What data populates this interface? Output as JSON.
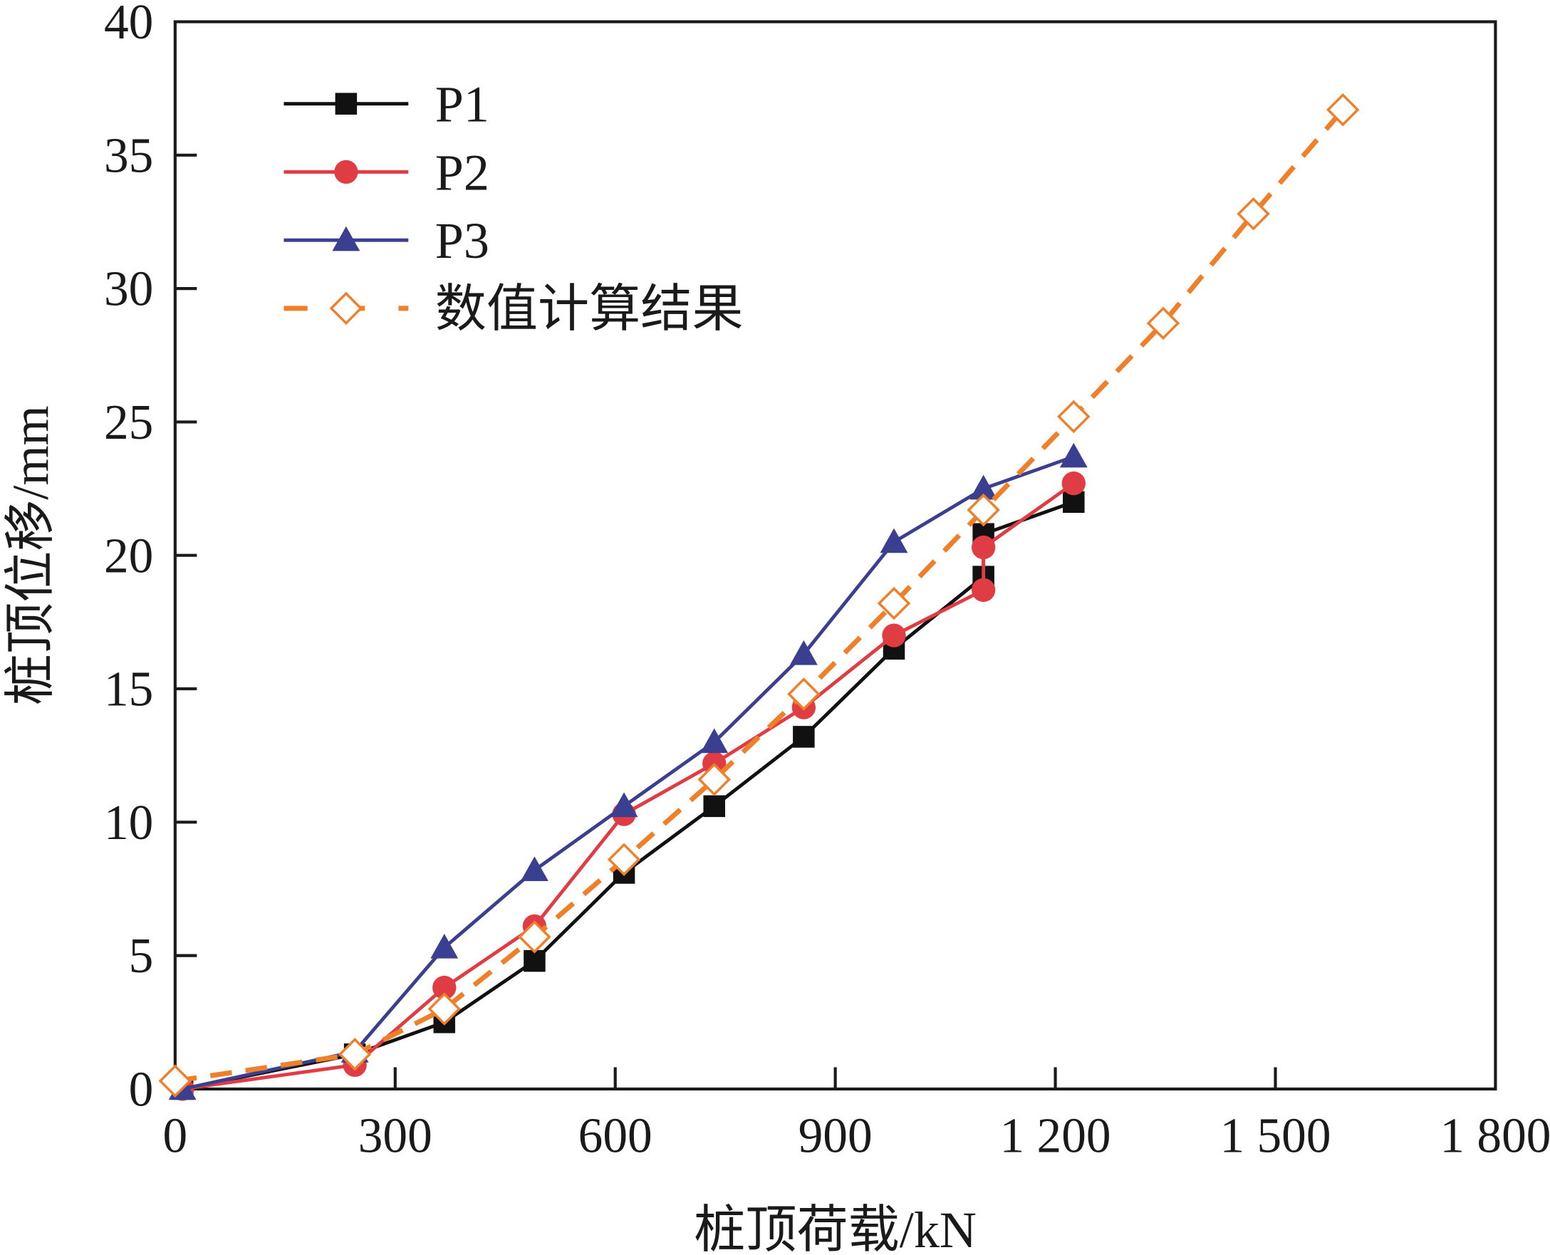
{
  "chart_data": {
    "type": "line",
    "title": "",
    "xlabel": "桩顶荷载/kN",
    "ylabel": "桩顶位移/mm",
    "xlim": [
      0,
      1800
    ],
    "ylim": [
      0,
      40
    ],
    "xticks": [
      0,
      300,
      600,
      900,
      1200,
      1500,
      1800
    ],
    "xtick_labels": [
      "0",
      "300",
      "600",
      "900",
      "1 200",
      "1 500",
      "1 800"
    ],
    "yticks": [
      0,
      5,
      10,
      15,
      20,
      25,
      30,
      35,
      40
    ],
    "ytick_labels": [
      "0",
      "5",
      "10",
      "15",
      "20",
      "25",
      "30",
      "35",
      "40"
    ],
    "grid": false,
    "legend_position": "top-left",
    "series": [
      {
        "name": "P1",
        "color": "#111111",
        "marker": "square",
        "dash": false,
        "x": [
          10,
          245,
          367,
          490,
          612,
          735,
          857,
          980,
          1102,
          1102,
          1225
        ],
        "y": [
          0,
          1.3,
          2.5,
          4.8,
          8.1,
          10.6,
          13.2,
          16.5,
          19.2,
          20.8,
          22.0
        ]
      },
      {
        "name": "P2",
        "color": "#e03c44",
        "marker": "circle",
        "dash": false,
        "x": [
          10,
          245,
          367,
          490,
          612,
          735,
          857,
          980,
          1102,
          1102,
          1225
        ],
        "y": [
          0,
          0.9,
          3.8,
          6.1,
          10.3,
          12.2,
          14.3,
          17.0,
          18.7,
          20.3,
          22.7
        ]
      },
      {
        "name": "P3",
        "color": "#3a3f8f",
        "marker": "triangle",
        "dash": false,
        "x": [
          10,
          245,
          367,
          490,
          612,
          735,
          857,
          980,
          1102,
          1225
        ],
        "y": [
          0,
          1.4,
          5.3,
          8.2,
          10.6,
          13.0,
          16.3,
          20.5,
          22.5,
          23.7
        ]
      },
      {
        "name": "数值计算结果",
        "color": "#f07f2a",
        "marker": "diamond-open",
        "dash": true,
        "x": [
          0,
          245,
          367,
          490,
          612,
          735,
          857,
          980,
          1102,
          1225,
          1347,
          1470,
          1592
        ],
        "y": [
          0.3,
          1.3,
          3.0,
          5.7,
          8.6,
          11.6,
          14.8,
          18.2,
          21.7,
          25.2,
          28.7,
          32.8,
          36.7
        ]
      }
    ]
  }
}
